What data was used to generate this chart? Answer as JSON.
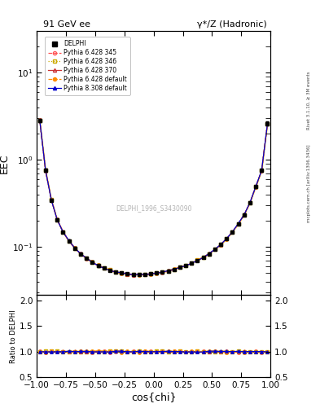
{
  "title_left": "91 GeV ee",
  "title_right": "γ*/Z (Hadronic)",
  "ylabel_main": "EEC",
  "ylabel_ratio": "Ratio to DELPHI",
  "xlabel": "cos{chi}",
  "right_label_top": "Rivet 3.1.10, ≥ 3M events",
  "right_label_bottom": "mcplots.cern.ch [arXiv:1306.3436]",
  "watermark": "DELPHI_1996_S3430090",
  "xlim": [
    -1.0,
    1.0
  ],
  "ylim_main": [
    0.028,
    30.0
  ],
  "ylim_ratio": [
    0.5,
    2.1
  ],
  "data_x": [
    -0.975,
    -0.925,
    -0.875,
    -0.825,
    -0.775,
    -0.725,
    -0.675,
    -0.625,
    -0.575,
    -0.525,
    -0.475,
    -0.425,
    -0.375,
    -0.325,
    -0.275,
    -0.225,
    -0.175,
    -0.125,
    -0.075,
    -0.025,
    0.025,
    0.075,
    0.125,
    0.175,
    0.225,
    0.275,
    0.325,
    0.375,
    0.425,
    0.475,
    0.525,
    0.575,
    0.625,
    0.675,
    0.725,
    0.775,
    0.825,
    0.875,
    0.925,
    0.975
  ],
  "data_y": [
    2.85,
    0.76,
    0.345,
    0.205,
    0.148,
    0.117,
    0.097,
    0.083,
    0.074,
    0.067,
    0.061,
    0.057,
    0.054,
    0.051,
    0.05,
    0.049,
    0.048,
    0.048,
    0.048,
    0.049,
    0.05,
    0.051,
    0.053,
    0.055,
    0.058,
    0.061,
    0.065,
    0.07,
    0.076,
    0.083,
    0.093,
    0.106,
    0.124,
    0.149,
    0.184,
    0.234,
    0.322,
    0.492,
    0.755,
    2.62
  ],
  "data_yerr": [
    0.12,
    0.025,
    0.01,
    0.006,
    0.004,
    0.003,
    0.003,
    0.002,
    0.002,
    0.002,
    0.002,
    0.001,
    0.001,
    0.001,
    0.001,
    0.001,
    0.001,
    0.001,
    0.001,
    0.001,
    0.001,
    0.001,
    0.001,
    0.001,
    0.001,
    0.001,
    0.001,
    0.001,
    0.002,
    0.002,
    0.002,
    0.003,
    0.003,
    0.004,
    0.005,
    0.007,
    0.01,
    0.016,
    0.025,
    0.12
  ],
  "mc_configs": [
    {
      "color": "#ff5555",
      "marker": "o",
      "ls": "--",
      "ms": 2.5,
      "mfc": "none",
      "lw": 0.9,
      "label": "Pythia 6.428 345"
    },
    {
      "color": "#ccaa00",
      "marker": "s",
      "ls": ":",
      "ms": 2.5,
      "mfc": "none",
      "lw": 0.9,
      "label": "Pythia 6.428 346"
    },
    {
      "color": "#cc3333",
      "marker": "^",
      "ls": "-",
      "ms": 2.5,
      "mfc": "none",
      "lw": 0.9,
      "label": "Pythia 6.428 370"
    },
    {
      "color": "#ff8c00",
      "marker": "o",
      "ls": "--",
      "ms": 2.5,
      "mfc": "#ff8c00",
      "lw": 0.9,
      "label": "Pythia 6.428 default"
    },
    {
      "color": "#0000cc",
      "marker": "^",
      "ls": "-",
      "ms": 2.5,
      "mfc": "#0000cc",
      "lw": 0.9,
      "label": "Pythia 8.308 default"
    }
  ],
  "mc_noise_seeds": [
    10,
    20,
    30,
    40,
    50
  ],
  "mc_noise_scale": [
    0.015,
    0.008,
    0.012,
    0.018,
    0.01
  ],
  "background_color": "#ffffff"
}
